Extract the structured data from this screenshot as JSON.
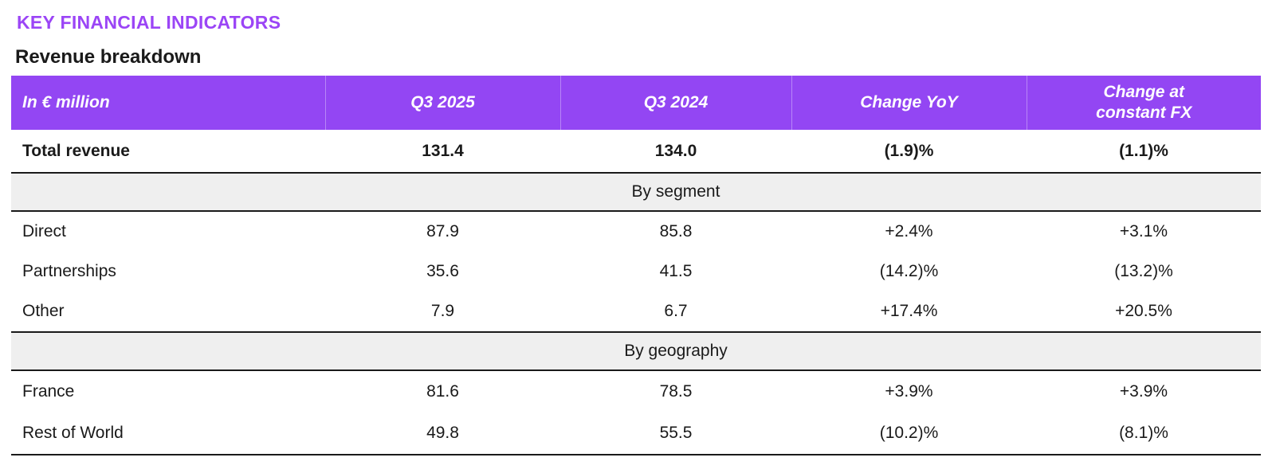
{
  "chart_data": {
    "type": "table",
    "title": "KEY FINANCIAL INDICATORS",
    "subtitle": "Revenue breakdown",
    "columns": [
      "In € million",
      "Q3 2025",
      "Q3 2024",
      "Change YoY",
      "Change at constant FX"
    ],
    "total_row": {
      "label": "Total revenue",
      "values": [
        "131.4",
        "134.0",
        "(1.9)%",
        "(1.1)%"
      ]
    },
    "sections": [
      {
        "label": "By segment",
        "rows": [
          {
            "label": "Direct",
            "values": [
              "87.9",
              "85.8",
              "+2.4%",
              "+3.1%"
            ]
          },
          {
            "label": "Partnerships",
            "values": [
              "35.6",
              "41.5",
              "(14.2)%",
              "(13.2)%"
            ]
          },
          {
            "label": "Other",
            "values": [
              "7.9",
              "6.7",
              "+17.4%",
              "+20.5%"
            ]
          }
        ]
      },
      {
        "label": "By geography",
        "rows": [
          {
            "label": "France",
            "values": [
              "81.6",
              "78.5",
              "+3.9%",
              "+3.9%"
            ]
          },
          {
            "label": "Rest of World",
            "values": [
              "49.8",
              "55.5",
              "(10.2)%",
              "(8.1)%"
            ]
          }
        ]
      }
    ]
  },
  "colors": {
    "title_purple": "#9B45F6",
    "header_purple": "#9346F3",
    "header_text": "#FFFFFF",
    "section_gray": "#EFEFEF",
    "rule_black": "#1A1A1A",
    "body_text": "#1A1A1A"
  }
}
